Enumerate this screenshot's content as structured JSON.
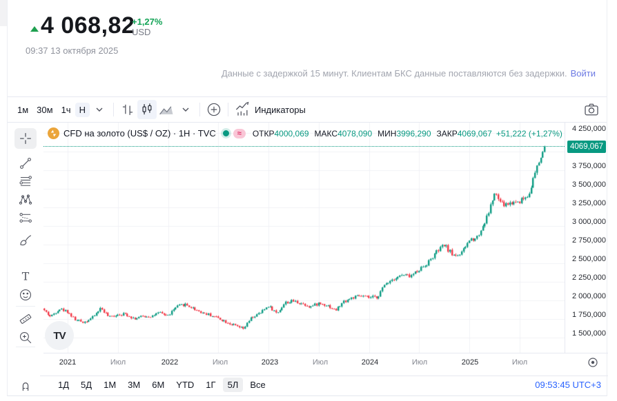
{
  "header": {
    "price": "4 068,82",
    "change_percent": "+1,27%",
    "currency": "USD",
    "timestamp": "09:37 13 октября 2025",
    "delay_notice": "Данные с задержкой 15 минут. Клиентам БКС данные поставляются без задержки.",
    "login_link": "Войти"
  },
  "toolbar": {
    "intervals": [
      "1м",
      "30м",
      "1ч",
      "Н"
    ],
    "selected_interval": "Н",
    "indicators_label": "Индикаторы",
    "icons": [
      "chevron-down-icon",
      "bars-style-icon",
      "candles-style-icon",
      "area-style-icon",
      "chevron-down-icon",
      "compare-plus-icon",
      "indicators-icon",
      "camera-icon"
    ]
  },
  "chart": {
    "legend": {
      "symbol_icon": "gold-coin-icon",
      "symbol_title": "CFD на золото (US$ / OZ) · 1H · TVC",
      "status_dot": "market-status-dot",
      "delayed_badge": "≈",
      "ohlc": [
        {
          "label": "ОТКР",
          "value": "4000,069"
        },
        {
          "label": "МАКС",
          "value": "4078,090"
        },
        {
          "label": "МИН",
          "value": "3996,290"
        },
        {
          "label": "ЗАКР",
          "value": "4069,067"
        }
      ],
      "change": "+51,222 (+1,27%)"
    },
    "price_label": "4069,067",
    "watermark_logo": "TV",
    "y_axis": [
      "4 250,000",
      "4 000,000",
      "3 750,000",
      "3 500,000",
      "3 250,000",
      "3 000,000",
      "2 750,000",
      "2 500,000",
      "2 250,000",
      "2 000,000",
      "1 750,000",
      "1 500,000"
    ],
    "x_axis": [
      "2021",
      "Июл",
      "2022",
      "Июл",
      "2023",
      "Июл",
      "2024",
      "Июл",
      "2025",
      "Июл"
    ]
  },
  "sidebar_tools": [
    "crosshair",
    "trend-line",
    "fib-retracement",
    "xabcd-pattern",
    "long-short-position",
    "brush",
    "text",
    "emoji",
    "ruler",
    "zoom-in",
    "magnet"
  ],
  "bottom": {
    "ranges": [
      "1Д",
      "5Д",
      "1М",
      "3М",
      "6М",
      "YTD",
      "1Г",
      "5Л",
      "Все"
    ],
    "selected_range": "5Л",
    "clock": "09:53:45 UTC+3"
  },
  "colors": {
    "up": "#089981",
    "down": "#f23645",
    "grid": "#f0f2f6",
    "header_green": "#13a356",
    "link_blue": "#2962ff",
    "price_tag_bg": "#089981"
  },
  "chart_data": {
    "type": "candlestick",
    "symbol": "CFD на золото (US$ / OZ)",
    "interval": "1H",
    "exchange": "TVC",
    "last": {
      "open": 4000.069,
      "high": 4078.09,
      "low": 3996.29,
      "close": 4069.067,
      "change": 51.222,
      "change_pct": 1.27
    },
    "y_axis": {
      "min": 1500,
      "max": 4250,
      "step": 250,
      "unit": "USD"
    },
    "x_ticks": [
      "2021",
      "Июл",
      "2022",
      "Июл",
      "2023",
      "Июл",
      "2024",
      "Июл",
      "2025",
      "Июл"
    ],
    "time_range": {
      "from": "2020-10",
      "to": "2025-10-13"
    },
    "monthly_closes_note": "approx close per month, from Oct 2020 to Oct 2025",
    "monthly_closes": [
      1890,
      1780,
      1890,
      1850,
      1730,
      1710,
      1770,
      1900,
      1770,
      1815,
      1815,
      1755,
      1785,
      1790,
      1830,
      1797,
      1910,
      1950,
      1895,
      1840,
      1805,
      1765,
      1710,
      1660,
      1615,
      1770,
      1825,
      1930,
      1825,
      1970,
      1990,
      1960,
      1915,
      1960,
      1940,
      1865,
      1985,
      2035,
      2060,
      2035,
      2045,
      2230,
      2300,
      2340,
      2325,
      2420,
      2500,
      2640,
      2745,
      2610,
      2620,
      2810,
      2860,
      3090,
      3430,
      3280,
      3310,
      3340,
      3410,
      3760,
      4069.067
    ],
    "candle_count": 260,
    "noise_seed": 42
  }
}
